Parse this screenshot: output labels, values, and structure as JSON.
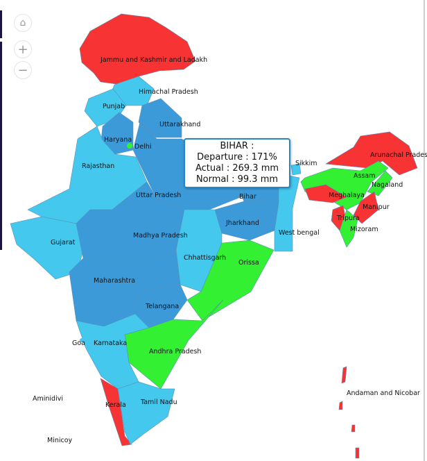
{
  "controls": {
    "home_icon": "home-icon",
    "zoom_in_icon": "plus-icon",
    "zoom_out_icon": "minus-icon"
  },
  "colors": {
    "red": "#f73333",
    "green": "#33f033",
    "light_blue": "#44c8ee",
    "dark_blue": "#3d9ad9"
  },
  "tooltip": {
    "title": "BIHAR :",
    "departure": "Departure : 171%",
    "actual": "Actual : 269.3 mm",
    "normal": "Normal : 99.3 mm"
  },
  "states": [
    {
      "name": "Jammu and Kashmir and Ladakh",
      "category": "red"
    },
    {
      "name": "Himachal Pradesh",
      "category": "light_blue"
    },
    {
      "name": "Punjab",
      "category": "light_blue"
    },
    {
      "name": "Uttarakhand",
      "category": "dark_blue"
    },
    {
      "name": "Haryana",
      "category": "dark_blue"
    },
    {
      "name": "Delhi",
      "category": "green"
    },
    {
      "name": "Rajasthan",
      "category": "light_blue"
    },
    {
      "name": "Uttar Pradesh",
      "category": "dark_blue"
    },
    {
      "name": "Bihar",
      "category": "dark_blue"
    },
    {
      "name": "Gujarat",
      "category": "light_blue"
    },
    {
      "name": "Madhya Pradesh",
      "category": "dark_blue"
    },
    {
      "name": "Jharkhand",
      "category": "dark_blue"
    },
    {
      "name": "West bengal",
      "category": "light_blue"
    },
    {
      "name": "Chhattisgarh",
      "category": "light_blue"
    },
    {
      "name": "Orissa",
      "category": "green"
    },
    {
      "name": "Maharashtra",
      "category": "dark_blue"
    },
    {
      "name": "Telangana",
      "category": "dark_blue"
    },
    {
      "name": "Andhra Pradesh",
      "category": "green"
    },
    {
      "name": "Karnataka",
      "category": "light_blue"
    },
    {
      "name": "Goa",
      "category": "light_blue"
    },
    {
      "name": "Kerala",
      "category": "red"
    },
    {
      "name": "Tamil Nadu",
      "category": "light_blue"
    },
    {
      "name": "Sikkim",
      "category": "light_blue"
    },
    {
      "name": "Assam",
      "category": "green"
    },
    {
      "name": "Arunachal Pradesh",
      "category": "red"
    },
    {
      "name": "Meghalaya",
      "category": "red"
    },
    {
      "name": "Nagaland",
      "category": "green"
    },
    {
      "name": "Manipur",
      "category": "red"
    },
    {
      "name": "Tripura",
      "category": "red"
    },
    {
      "name": "Mizoram",
      "category": "green"
    },
    {
      "name": "Andaman and Nicobar",
      "category": "red"
    },
    {
      "name": "Aminidivi",
      "category": "none"
    },
    {
      "name": "Minicoy",
      "category": "none"
    }
  ],
  "labels": {
    "jk": "Jammu and Kashmir and Ladakh",
    "hp": "Himachal Pradesh",
    "pb": "Punjab",
    "uk": "Uttarakhand",
    "hr": "Haryana",
    "dl": "Delhi",
    "rj": "Rajasthan",
    "up": "Uttar Pradesh",
    "br": "Bihar",
    "gj": "Gujarat",
    "mp": "Madhya Pradesh",
    "jh": "Jharkhand",
    "wb": "West bengal",
    "cg": "Chhattisgarh",
    "or": "Orissa",
    "mh": "Maharashtra",
    "tg": "Telangana",
    "ap": "Andhra Pradesh",
    "ka": "Karnataka",
    "ga": "Goa",
    "kl": "Kerala",
    "tn": "Tamil Nadu",
    "sk": "Sikkim",
    "as": "Assam",
    "ar": "Arunachal Pradesh",
    "ml": "Meghalaya",
    "nl": "Nagaland",
    "mn": "Manipur",
    "tr": "Tripura",
    "mz": "Mizoram",
    "an": "Andaman and Nicobar",
    "ld": "Aminidivi",
    "mc": "Minicoy"
  }
}
